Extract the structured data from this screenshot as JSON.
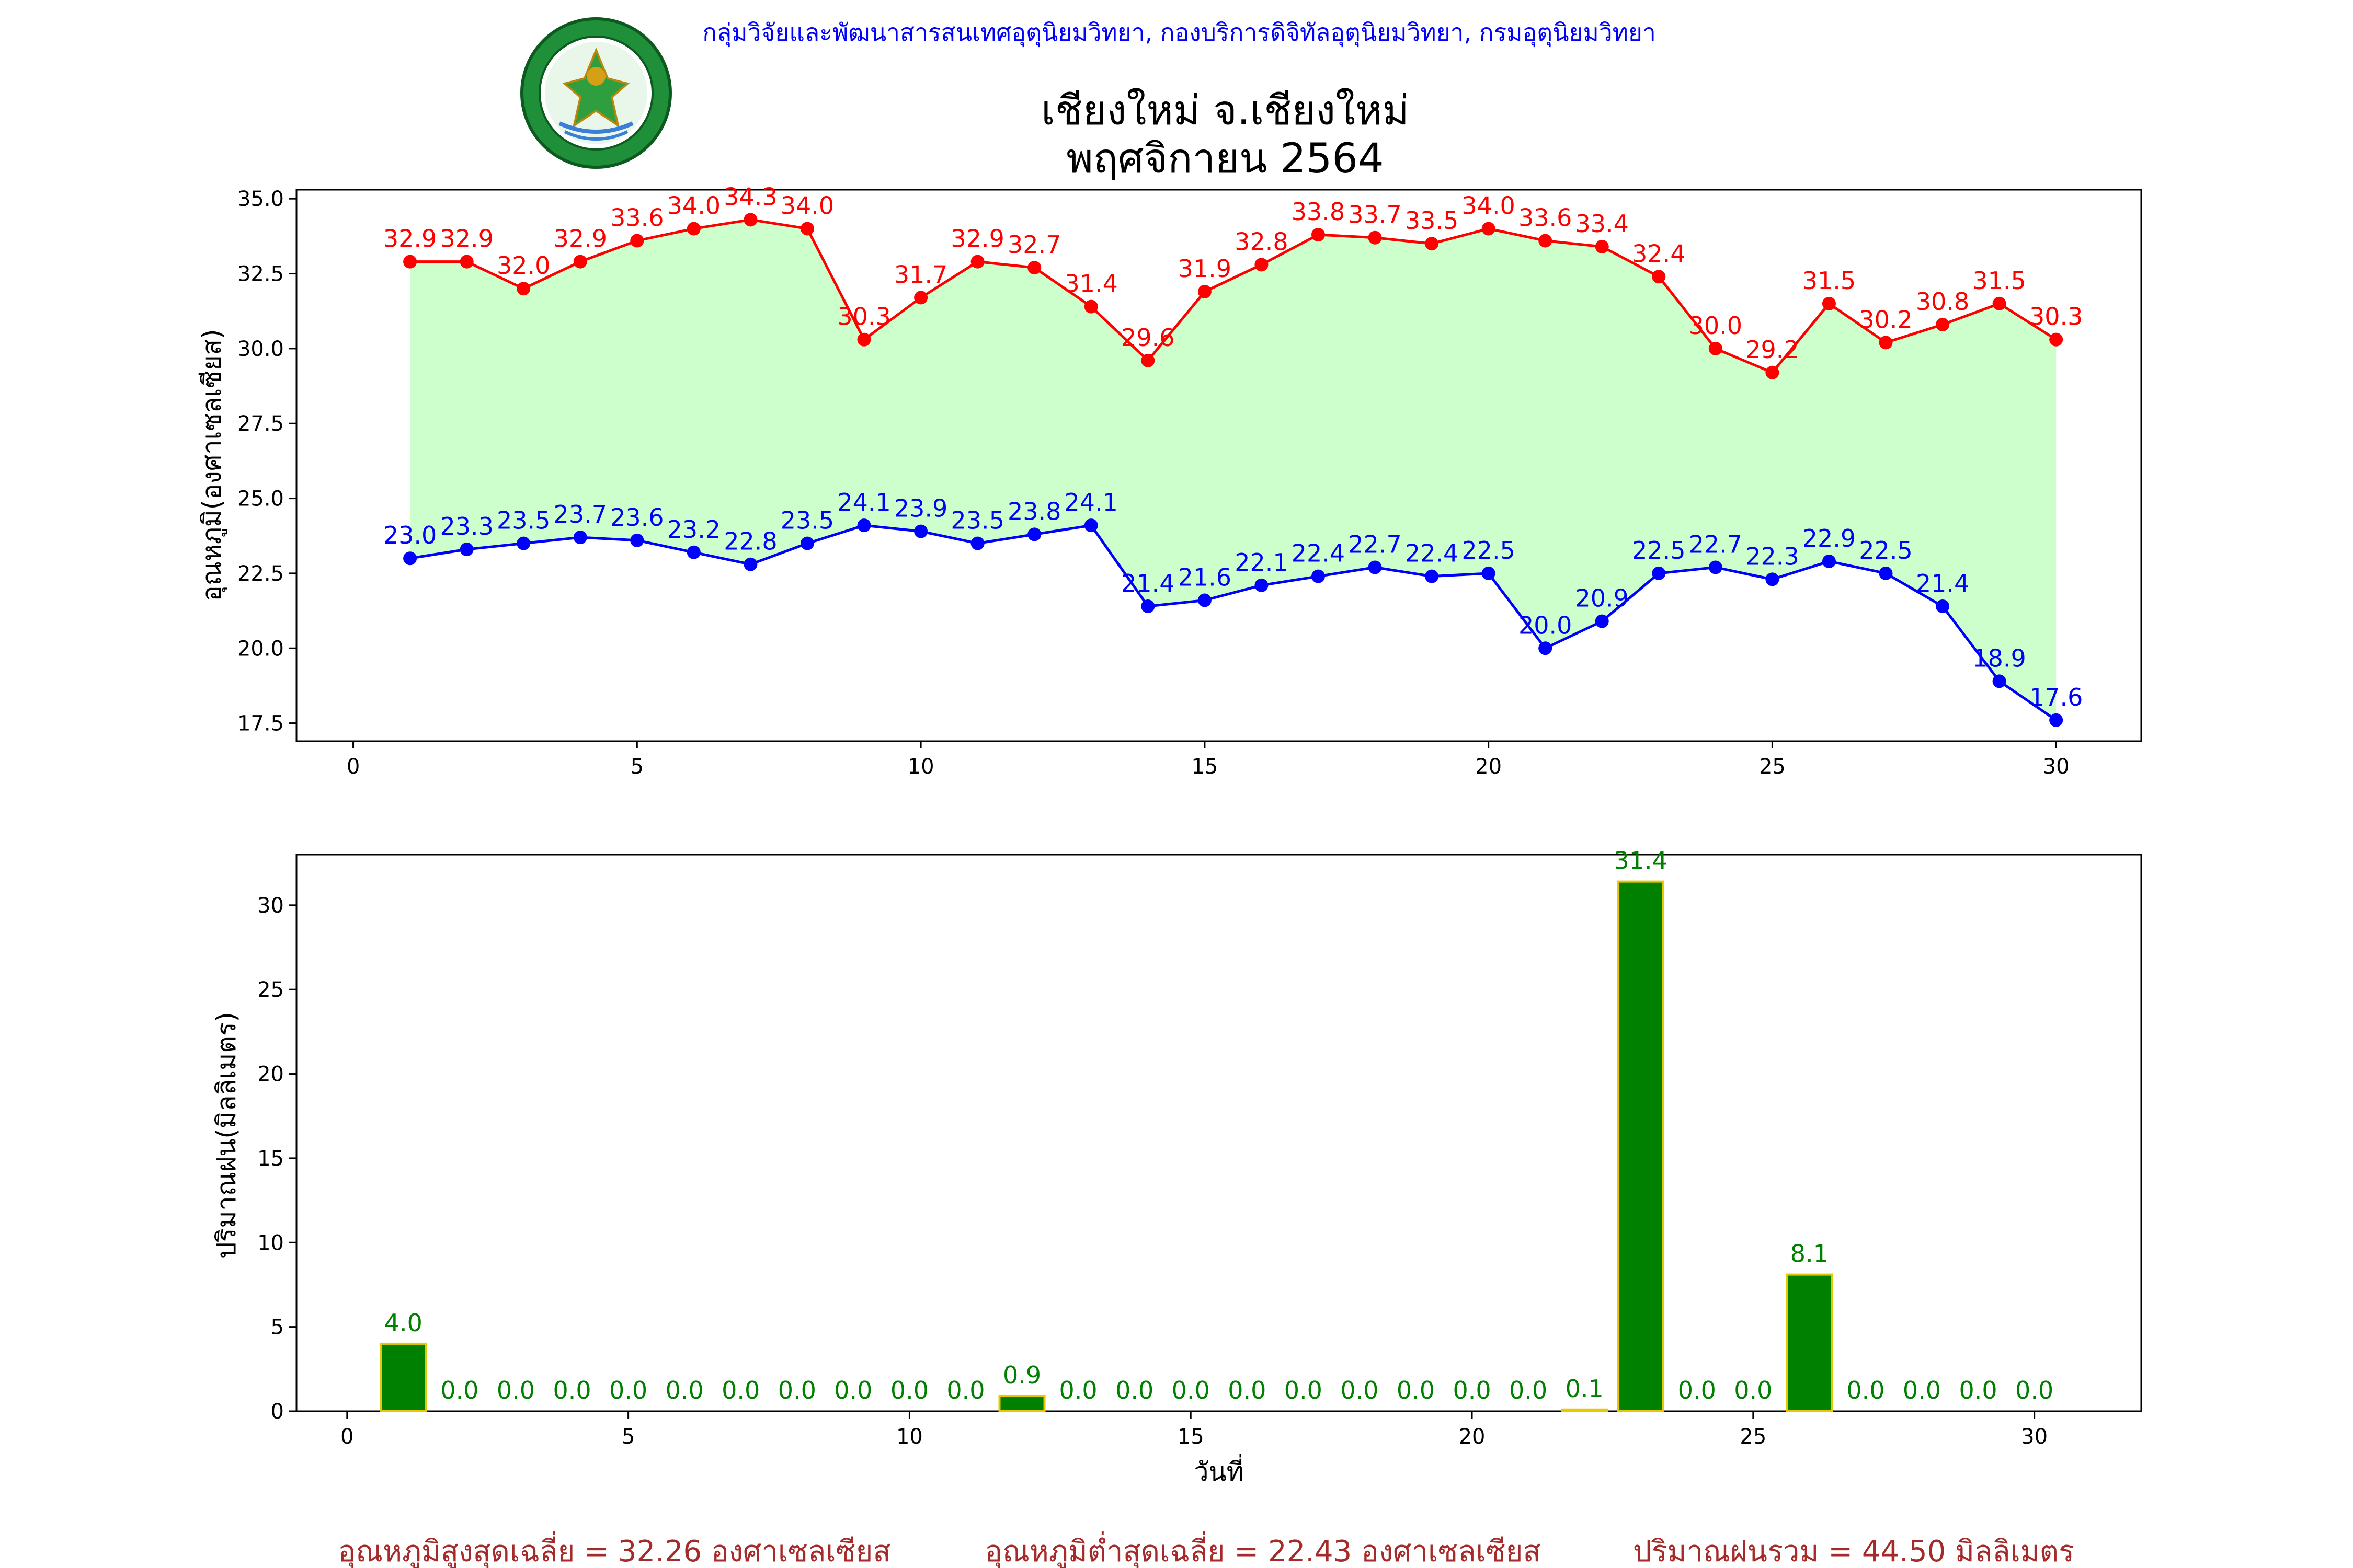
{
  "header": {
    "org_line": "กลุ่มวิจัยและพัฒนาสารสนเทศอุตุนิยมวิทยา, กองบริการดิจิทัลอุตุนิยมวิทยา, กรมอุตุนิยมวิทยา",
    "logo_name": "tmd-logo"
  },
  "title": {
    "line1": "เชียงใหม่ จ.เชียงใหม่",
    "line2": "พฤศจิกายน 2564"
  },
  "summary": {
    "avg_max": "อุณหภูมิสูงสุดเฉลี่ย = 32.26 องศาเซลเซียส",
    "avg_min": "อุณหภูมิต่ำสุดเฉลี่ย = 22.43 องศาเซลเซียส",
    "total_rain": "ปริมาณฝนรวม = 44.50 มิลลิเมตร"
  },
  "colors": {
    "max_line": "#ff0000",
    "min_line": "#0000ff",
    "fill": "#ccffcc",
    "bar": "#008000",
    "bar_edge": "#e8c800"
  },
  "chart_data": [
    {
      "type": "line",
      "title": "",
      "xlabel": "",
      "ylabel": "อุณหภูมิ(องศาเซลเซียส)",
      "xlim": [
        -1,
        31.5
      ],
      "ylim": [
        16.9,
        35.3
      ],
      "x_ticks": [
        0,
        5,
        10,
        15,
        20,
        25,
        30
      ],
      "y_ticks": [
        17.5,
        20.0,
        22.5,
        25.0,
        27.5,
        30.0,
        32.5,
        35.0
      ],
      "y_tick_labels": [
        "17.5",
        "20.0",
        "22.5",
        "25.0",
        "27.5",
        "30.0",
        "32.5",
        "35.0"
      ],
      "x": [
        1,
        2,
        3,
        4,
        5,
        6,
        7,
        8,
        9,
        10,
        11,
        12,
        13,
        14,
        15,
        16,
        17,
        18,
        19,
        20,
        21,
        22,
        23,
        24,
        25,
        26,
        27,
        28,
        29,
        30
      ],
      "series": [
        {
          "key": "max",
          "values": [
            32.9,
            32.9,
            32.0,
            32.9,
            33.6,
            34.0,
            34.3,
            34.0,
            30.3,
            31.7,
            32.9,
            32.7,
            31.4,
            29.6,
            31.9,
            32.8,
            33.8,
            33.7,
            33.5,
            34.0,
            33.6,
            33.4,
            32.4,
            30.0,
            29.2,
            31.5,
            30.2,
            30.8,
            31.5,
            30.3
          ],
          "labels": [
            "32.9",
            "32.9",
            "32.0",
            "32.9",
            "33.6",
            "34.0",
            "34.3",
            "34.0",
            "30.3",
            "31.7",
            "32.9",
            "32.7",
            "31.4",
            "29.6",
            "31.9",
            "32.8",
            "33.8",
            "33.7",
            "33.5",
            "34.0",
            "33.6",
            "33.4",
            "32.4",
            "30.0",
            "29.2",
            "31.5",
            "30.2",
            "30.8",
            "31.5",
            "30.3"
          ]
        },
        {
          "key": "min",
          "values": [
            23.0,
            23.3,
            23.5,
            23.7,
            23.6,
            23.2,
            22.8,
            23.5,
            24.1,
            23.9,
            23.5,
            23.8,
            24.1,
            21.4,
            21.6,
            22.1,
            22.4,
            22.7,
            22.4,
            22.5,
            20.0,
            20.9,
            22.5,
            22.7,
            22.3,
            22.9,
            22.5,
            21.4,
            18.9,
            17.6
          ],
          "labels": [
            "23.0",
            "23.3",
            "23.5",
            "23.7",
            "23.6",
            "23.2",
            "22.8",
            "23.5",
            "24.1",
            "23.9",
            "23.5",
            "23.8",
            "24.1",
            "21.4",
            "21.6",
            "22.1",
            "22.4",
            "22.7",
            "22.4",
            "22.5",
            "20.0",
            "20.9",
            "22.5",
            "22.7",
            "22.3",
            "22.9",
            "22.5",
            "21.4",
            "18.9",
            "17.6"
          ]
        }
      ],
      "grid": false
    },
    {
      "type": "bar",
      "title": "",
      "xlabel": "วันที่",
      "ylabel": "ปริมาณฝน(มิลลิเมตร)",
      "xlim": [
        -0.9,
        31.9
      ],
      "ylim": [
        0,
        33
      ],
      "x_ticks": [
        0,
        5,
        10,
        15,
        20,
        25,
        30
      ],
      "y_ticks": [
        0,
        5,
        10,
        15,
        20,
        25,
        30
      ],
      "x": [
        1,
        2,
        3,
        4,
        5,
        6,
        7,
        8,
        9,
        10,
        11,
        12,
        13,
        14,
        15,
        16,
        17,
        18,
        19,
        20,
        21,
        22,
        23,
        24,
        25,
        26,
        27,
        28,
        29,
        30
      ],
      "values": [
        4.0,
        0.0,
        0.0,
        0.0,
        0.0,
        0.0,
        0.0,
        0.0,
        0.0,
        0.0,
        0.0,
        0.9,
        0.0,
        0.0,
        0.0,
        0.0,
        0.0,
        0.0,
        0.0,
        0.0,
        0.0,
        0.1,
        31.4,
        0.0,
        0.0,
        8.1,
        0.0,
        0.0,
        0.0,
        0.0
      ],
      "labels": [
        "4.0",
        "0.0",
        "0.0",
        "0.0",
        "0.0",
        "0.0",
        "0.0",
        "0.0",
        "0.0",
        "0.0",
        "0.0",
        "0.9",
        "0.0",
        "0.0",
        "0.0",
        "0.0",
        "0.0",
        "0.0",
        "0.0",
        "0.0",
        "0.0",
        "0.1",
        "31.4",
        "0.0",
        "0.0",
        "8.1",
        "0.0",
        "0.0",
        "0.0",
        "0.0"
      ],
      "grid": false
    }
  ]
}
